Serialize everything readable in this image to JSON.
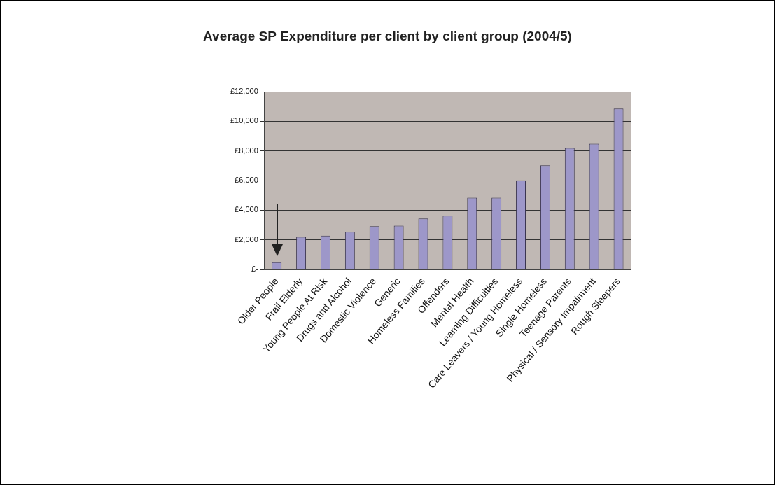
{
  "chart_data": {
    "type": "bar",
    "title": "Average SP Expenditure per client by client group (2004/5)",
    "categories": [
      "Older People",
      "Frail Elderly",
      "Young People At Risk",
      "Drugs and Alcohol",
      "Domestic Violence",
      "Generic",
      "Homeless Families",
      "Offenders",
      "Mental Health",
      "Learning Difficulties",
      "Care Leavers / Young Homeless",
      "Single Homeless",
      "Teenage Parents",
      "Physical / Sensory Impairment",
      "Rough Sleepers"
    ],
    "values": [
      490,
      2210,
      2290,
      2550,
      2920,
      2960,
      3440,
      3630,
      4850,
      4850,
      6020,
      7030,
      8200,
      8480,
      10850
    ],
    "color": "#9d97c9",
    "ylim": [
      0,
      12000
    ],
    "yticks": [
      {
        "value": 0,
        "label": "£-"
      },
      {
        "value": 2000,
        "label": "£2,000"
      },
      {
        "value": 4000,
        "label": "£4,000"
      },
      {
        "value": 6000,
        "label": "£6,000"
      },
      {
        "value": 8000,
        "label": "£8,000"
      },
      {
        "value": 10000,
        "label": "£10,000"
      },
      {
        "value": 12000,
        "label": "£12,000"
      }
    ],
    "grid": "y"
  }
}
